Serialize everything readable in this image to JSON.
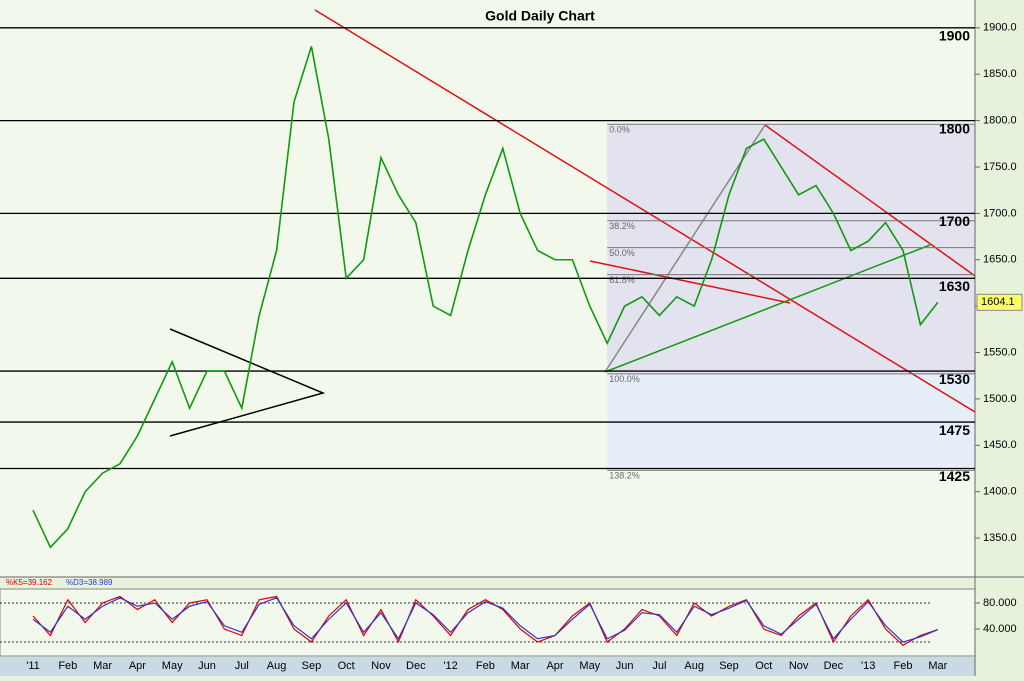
{
  "chart_data": [
    {
      "type": "line",
      "title": "Gold Daily Chart",
      "categories": [
        "'11",
        null,
        "Feb",
        null,
        "Mar",
        null,
        "Apr",
        null,
        "May",
        null,
        "Jun",
        null,
        "Jul",
        null,
        "Aug",
        null,
        "Sep",
        null,
        "Oct",
        null,
        "Nov",
        null,
        "Dec",
        null,
        "'12",
        null,
        "Feb",
        null,
        "Mar",
        null,
        "Apr",
        null,
        "May",
        null,
        "Jun",
        null,
        "Jul",
        null,
        "Aug",
        null,
        "Sep",
        null,
        "Oct",
        null,
        "Nov",
        null,
        "Dec",
        null,
        "'13",
        null,
        "Feb",
        null,
        "Mar"
      ],
      "values": [
        1380,
        1340,
        1360,
        1400,
        1420,
        1430,
        1460,
        1500,
        1540,
        1490,
        1530,
        1530,
        1490,
        1590,
        1660,
        1820,
        1880,
        1780,
        1630,
        1650,
        1760,
        1720,
        1690,
        1600,
        1590,
        1660,
        1720,
        1770,
        1700,
        1660,
        1650,
        1650,
        1600,
        1560,
        1600,
        1610,
        1590,
        1610,
        1600,
        1650,
        1720,
        1770,
        1780,
        1750,
        1720,
        1730,
        1700,
        1660,
        1670,
        1690,
        1660,
        1580,
        1604.1
      ],
      "color": "#119911",
      "ylim": [
        1308,
        1930
      ],
      "yticks": [
        {
          "value": 1350,
          "label": "1350.0"
        },
        {
          "value": 1400,
          "label": "1400.0"
        },
        {
          "value": 1450,
          "label": "1450.0"
        },
        {
          "value": 1500,
          "label": "1500.0"
        },
        {
          "value": 1550,
          "label": "1550.0"
        },
        {
          "value": 1600,
          "label": "1600.0"
        },
        {
          "value": 1650,
          "label": "1650.0"
        },
        {
          "value": 1700,
          "label": "1700.0"
        },
        {
          "value": 1750,
          "label": "1750.0"
        },
        {
          "value": 1800,
          "label": "1800.0"
        },
        {
          "value": 1850,
          "label": "1850.0"
        },
        {
          "value": 1900,
          "label": "1900.0"
        }
      ],
      "levels": [
        1900,
        1800,
        1700,
        1630,
        1530,
        1475,
        1425
      ],
      "fib_levels": [
        {
          "value": 1796,
          "label": "0.0%"
        },
        {
          "value": 1692,
          "label": "38.2%"
        },
        {
          "value": 1663,
          "label": "50.0%"
        },
        {
          "value": 1634,
          "label": "61.8%"
        },
        {
          "value": 1527,
          "label": "100.0%"
        },
        {
          "value": 1423,
          "label": "138.2%"
        }
      ]
    },
    {
      "type": "line",
      "series": [
        {
          "name": "%K5=39.162",
          "color": "#dd0000",
          "values": [
            60,
            30,
            85,
            50,
            80,
            90,
            70,
            85,
            50,
            80,
            85,
            40,
            30,
            85,
            90,
            40,
            20,
            60,
            85,
            30,
            70,
            20,
            85,
            60,
            30,
            70,
            85,
            70,
            40,
            20,
            30,
            60,
            80,
            20,
            40,
            70,
            60,
            30,
            80,
            60,
            75,
            85,
            40,
            30,
            60,
            80,
            20,
            60,
            85,
            40,
            15,
            30,
            39.162
          ]
        },
        {
          "name": "%D3=38.989",
          "color": "#3333cc",
          "values": [
            55,
            35,
            75,
            55,
            75,
            88,
            75,
            80,
            55,
            75,
            82,
            45,
            35,
            78,
            88,
            45,
            25,
            55,
            80,
            35,
            65,
            25,
            80,
            62,
            35,
            65,
            82,
            72,
            45,
            25,
            30,
            55,
            78,
            25,
            38,
            65,
            62,
            35,
            75,
            62,
            72,
            84,
            45,
            32,
            55,
            78,
            25,
            55,
            82,
            45,
            20,
            28,
            38.989
          ]
        }
      ],
      "ylim": [
        -1.5,
        101.5
      ],
      "yticks": [
        {
          "value": 40,
          "label": "40.000"
        },
        {
          "value": 80,
          "label": "80.000"
        }
      ],
      "guides": [
        20,
        80
      ]
    }
  ]
}
